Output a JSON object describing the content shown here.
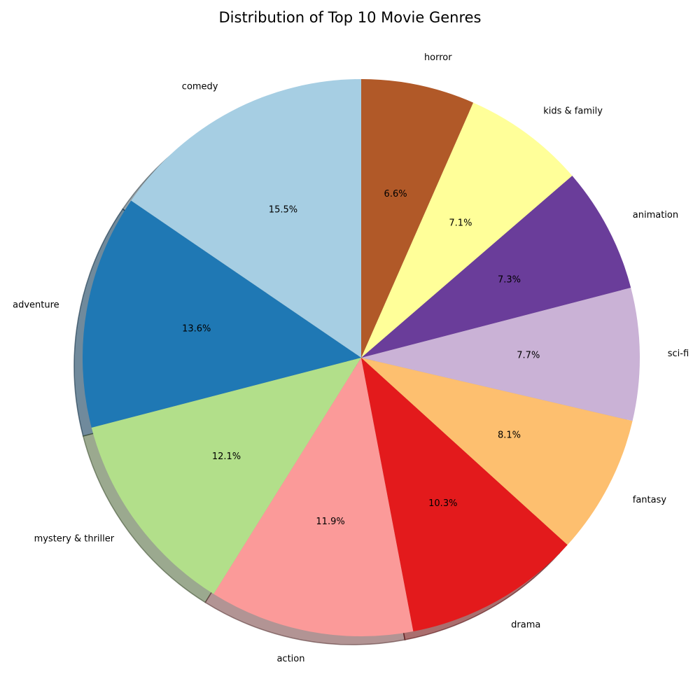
{
  "chart_data": {
    "type": "pie",
    "title": "Distribution of Top 10 Movie Genres",
    "start_angle_deg": 90,
    "direction": "counterclockwise",
    "shadow": true,
    "slices": [
      {
        "label": "comedy",
        "value": 15.5,
        "pct_label": "15.5%",
        "color": "#a6cee3"
      },
      {
        "label": "adventure",
        "value": 13.6,
        "pct_label": "13.6%",
        "color": "#1f78b4"
      },
      {
        "label": "mystery & thriller",
        "value": 12.1,
        "pct_label": "12.1%",
        "color": "#b2df8a"
      },
      {
        "label": "action",
        "value": 11.9,
        "pct_label": "11.9%",
        "color": "#fb9a99"
      },
      {
        "label": "drama",
        "value": 10.3,
        "pct_label": "10.3%",
        "color": "#e31a1c"
      },
      {
        "label": "fantasy",
        "value": 8.1,
        "pct_label": "8.1%",
        "color": "#fdbf6f"
      },
      {
        "label": "sci-fi",
        "value": 7.7,
        "pct_label": "7.7%",
        "color": "#cab2d6"
      },
      {
        "label": "animation",
        "value": 7.3,
        "pct_label": "7.3%",
        "color": "#6a3d9a"
      },
      {
        "label": "kids & family",
        "value": 7.1,
        "pct_label": "7.1%",
        "color": "#ffff99"
      },
      {
        "label": "horror",
        "value": 6.6,
        "pct_label": "6.6%",
        "color": "#b15928"
      }
    ]
  }
}
